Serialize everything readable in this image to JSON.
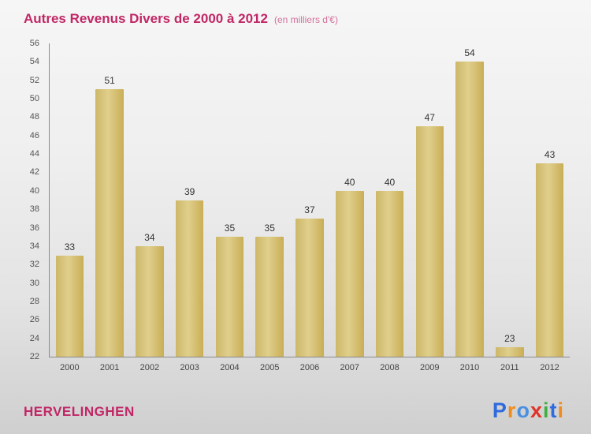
{
  "title": {
    "text": "Autres Revenus Divers de 2000 à 2012",
    "subtitle": "(en milliers d'€)"
  },
  "chart_data": {
    "type": "bar",
    "title": "Autres Revenus Divers de 2000 à 2012",
    "subtitle": "(en milliers d'€)",
    "categories": [
      "2000",
      "2001",
      "2002",
      "2003",
      "2004",
      "2005",
      "2006",
      "2007",
      "2008",
      "2009",
      "2010",
      "2011",
      "2012"
    ],
    "values": [
      33,
      51,
      34,
      39,
      35,
      35,
      37,
      40,
      40,
      47,
      54,
      23,
      43
    ],
    "xlabel": "",
    "ylabel": "",
    "ylim": [
      22,
      56
    ],
    "ytick_step": 2,
    "grid": false,
    "legend": false,
    "bar_color": "#d5c272",
    "title_color": "#c12766",
    "subtitle_color": "#d4719d"
  },
  "footer": {
    "location": "HERVELINGHEN",
    "logo_letters": [
      {
        "ch": "P",
        "color": "#2f6bdc"
      },
      {
        "ch": "r",
        "color": "#f08c1e"
      },
      {
        "ch": "o",
        "color": "#4a8fe0"
      },
      {
        "ch": "x",
        "color": "#e03227"
      },
      {
        "ch": "i",
        "color": "#3faf3f"
      },
      {
        "ch": "t",
        "color": "#2f6bdc"
      },
      {
        "ch": "i",
        "color": "#f08c1e"
      }
    ]
  }
}
